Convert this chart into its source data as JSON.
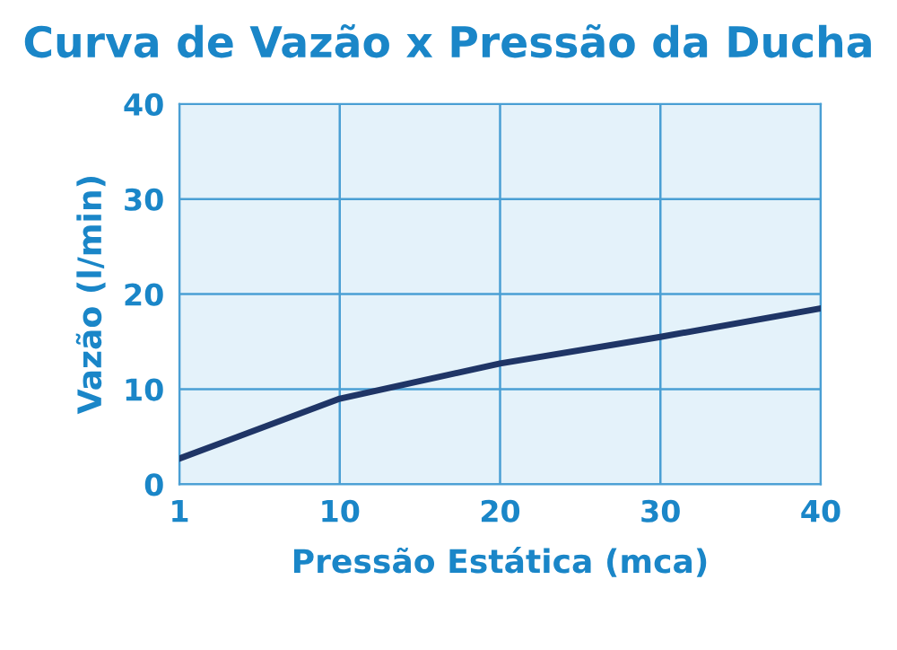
{
  "chart_data": {
    "type": "line",
    "title": "Curva de Vazão x Pressão da Ducha",
    "xlabel": "Pressão Estática (mca)",
    "ylabel": "Vazão (l/min)",
    "categories": [
      "1",
      "10",
      "20",
      "30",
      "40"
    ],
    "series": [
      {
        "color": "#1f3566",
        "values": [
          2.7,
          9,
          12.7,
          15.5,
          18.5
        ]
      }
    ],
    "ylim": [
      0,
      40
    ],
    "yticks": [
      0,
      10,
      20,
      30,
      40
    ],
    "grid": true,
    "marker": "none",
    "line_style": "solid"
  }
}
